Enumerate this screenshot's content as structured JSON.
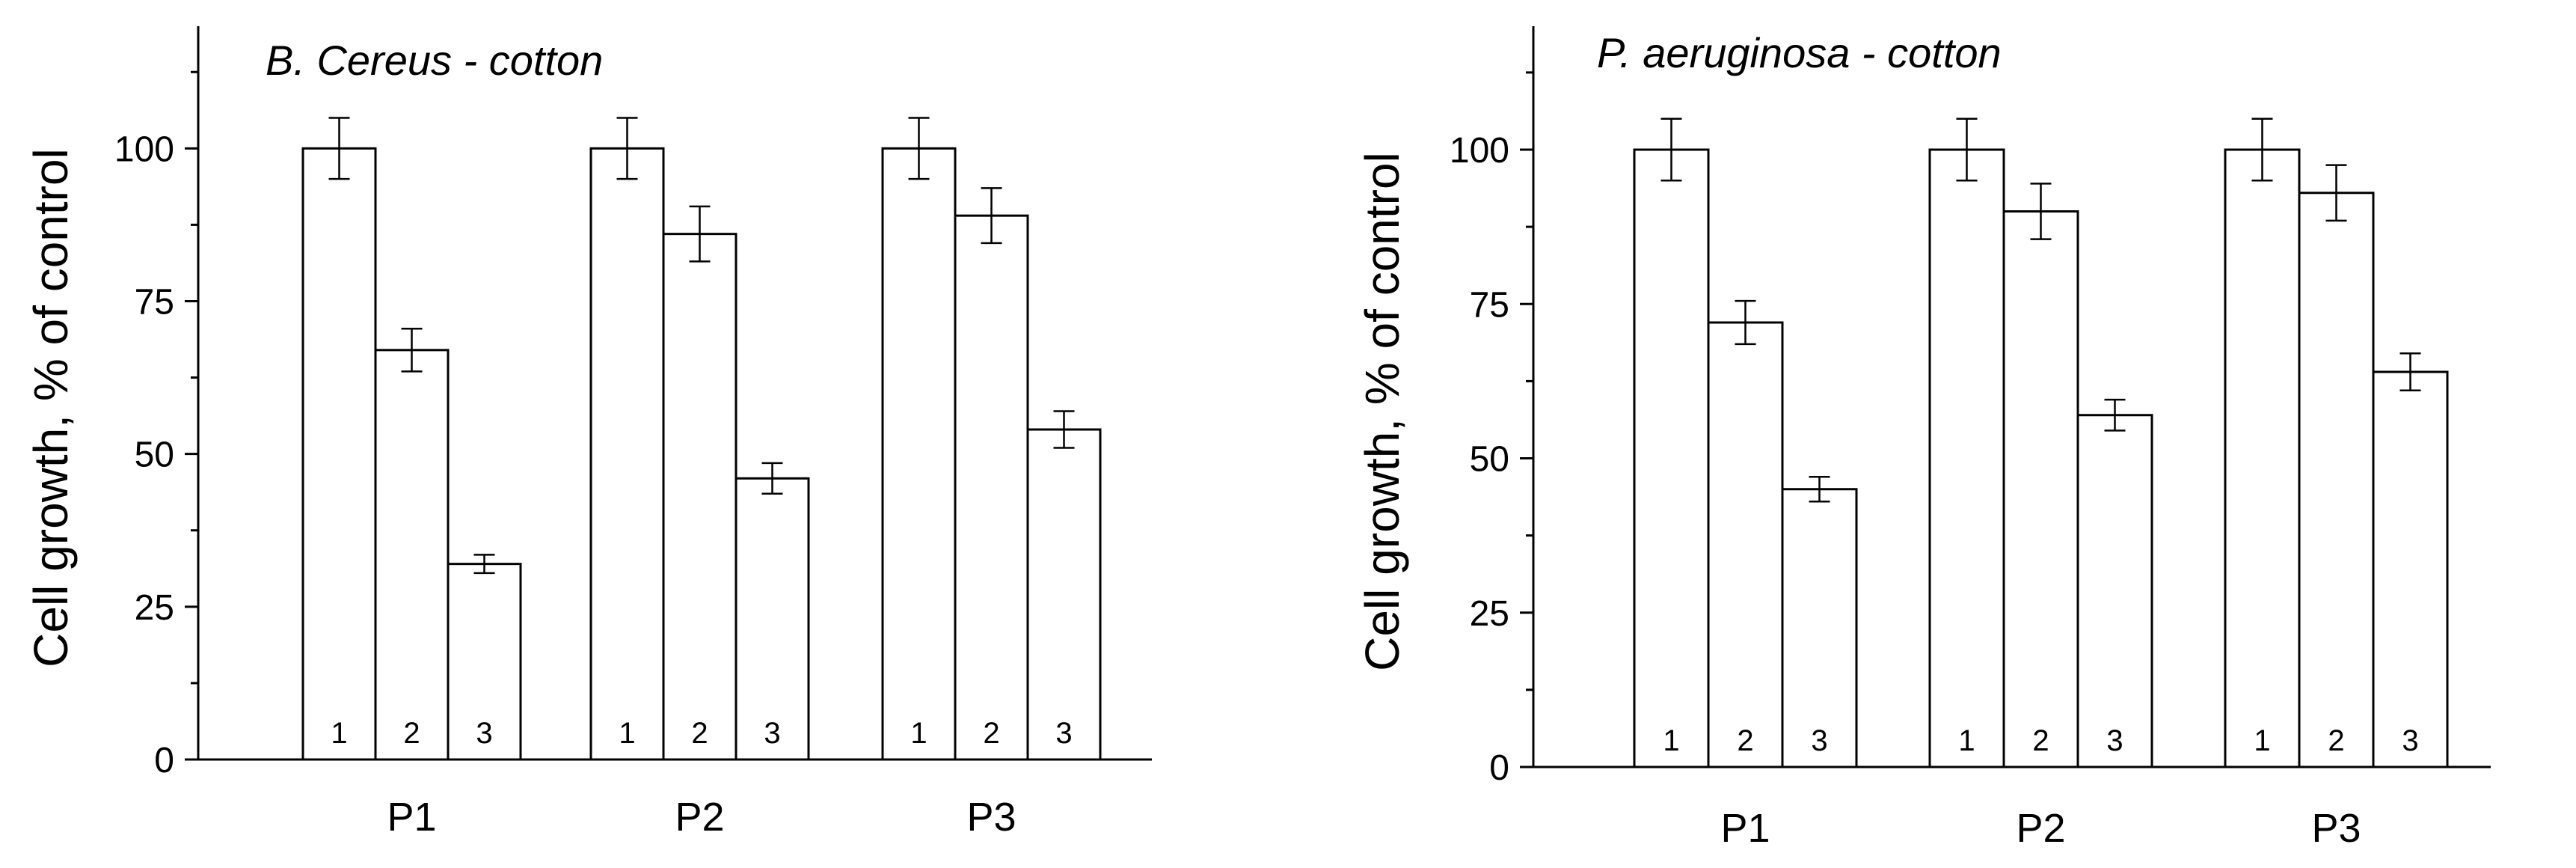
{
  "colors": {
    "bar_fill": "#ffffff",
    "stroke": "#000000"
  },
  "chart_data": [
    {
      "type": "bar",
      "title": "B. Cereus - cotton",
      "xlabel": "",
      "ylabel": "Cell growth, % of control",
      "ylim": [
        0,
        120
      ],
      "yticks": [
        0,
        25,
        50,
        75,
        100
      ],
      "ytick_labels": [
        "0",
        "25",
        "50",
        "75",
        "100"
      ],
      "categories": [
        "P1",
        "P2",
        "P3"
      ],
      "series": [
        {
          "name": "1",
          "values": [
            100,
            100,
            100
          ],
          "errors": [
            5,
            5,
            5
          ]
        },
        {
          "name": "2",
          "values": [
            67,
            86,
            89
          ],
          "errors": [
            3.5,
            4.5,
            4.5
          ]
        },
        {
          "name": "3",
          "values": [
            32,
            46,
            54
          ],
          "errors": [
            1.5,
            2.5,
            3
          ]
        }
      ],
      "grid": false,
      "legend": "none"
    },
    {
      "type": "bar",
      "title": "P. aeruginosa - cotton",
      "xlabel": "",
      "ylabel": "Cell growth, % of control",
      "ylim": [
        0,
        120
      ],
      "yticks": [
        0,
        25,
        50,
        75,
        100
      ],
      "ytick_labels": [
        "0",
        "25",
        "50",
        "75",
        "100"
      ],
      "categories": [
        "P1",
        "P2",
        "P3"
      ],
      "series": [
        {
          "name": "1",
          "values": [
            100,
            100,
            100
          ],
          "errors": [
            5,
            5,
            5
          ]
        },
        {
          "name": "2",
          "values": [
            72,
            90,
            93
          ],
          "errors": [
            3.5,
            4.5,
            4.5
          ]
        },
        {
          "name": "3",
          "values": [
            45,
            57,
            64
          ],
          "errors": [
            2,
            2.5,
            3
          ]
        }
      ],
      "grid": false,
      "legend": "none"
    }
  ]
}
